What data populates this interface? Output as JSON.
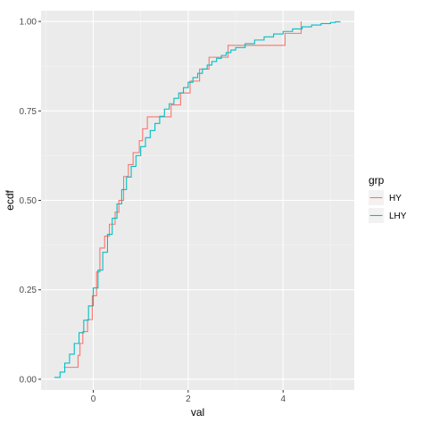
{
  "chart_data": {
    "type": "line",
    "subtype": "ecdf-step",
    "xlabel": "val",
    "ylabel": "ecdf",
    "xlim": [
      -1.1,
      5.5
    ],
    "ylim": [
      -0.03,
      1.03
    ],
    "x_ticks": [
      0,
      2,
      4
    ],
    "x_tick_labels": [
      "0",
      "2",
      "4"
    ],
    "y_ticks": [
      0.0,
      0.25,
      0.5,
      0.75,
      1.0
    ],
    "y_tick_labels": [
      "0.00",
      "0.25",
      "0.50",
      "0.75",
      "1.00"
    ],
    "grid": true,
    "legend": {
      "title": "grp",
      "position": "right"
    },
    "series": [
      {
        "name": "HY",
        "color": "#F8766D",
        "x": [
          -0.62,
          -0.32,
          -0.28,
          -0.22,
          -0.12,
          -0.02,
          0.07,
          0.14,
          0.24,
          0.34,
          0.46,
          0.54,
          0.64,
          0.74,
          0.84,
          0.97,
          1.04,
          1.14,
          1.24,
          1.34,
          1.44,
          1.64,
          1.84,
          2.04,
          2.24,
          2.44,
          2.64,
          2.84,
          3.04,
          3.24,
          3.44,
          3.64,
          3.84,
          4.04,
          4.24,
          4.38
        ],
        "y": [
          0.0333,
          0.0667,
          0.1,
          0.1333,
          0.1667,
          0.2333,
          0.3,
          0.3667,
          0.4,
          0.4333,
          0.4667,
          0.5,
          0.5667,
          0.6,
          0.6333,
          0.6667,
          0.7,
          0.7333,
          0.7333,
          0.7333,
          0.7333,
          0.7667,
          0.8,
          0.8333,
          0.8667,
          0.9,
          0.9,
          0.9333,
          0.9333,
          0.9333,
          0.9333,
          0.9333,
          0.9333,
          0.9667,
          0.9667,
          1.0
        ]
      },
      {
        "name": "LHY",
        "color": "#00BFC4",
        "x": [
          -0.82,
          -0.7,
          -0.6,
          -0.5,
          -0.4,
          -0.3,
          -0.2,
          -0.1,
          0.0,
          0.1,
          0.2,
          0.3,
          0.4,
          0.5,
          0.6,
          0.7,
          0.8,
          0.9,
          1.0,
          1.1,
          1.2,
          1.3,
          1.4,
          1.5,
          1.6,
          1.7,
          1.8,
          1.9,
          2.0,
          2.1,
          2.2,
          2.3,
          2.4,
          2.5,
          2.6,
          2.7,
          2.8,
          2.9,
          3.0,
          3.2,
          3.4,
          3.6,
          3.8,
          4.0,
          4.2,
          4.4,
          4.6,
          4.8,
          5.0,
          5.1,
          5.2
        ],
        "y": [
          0.005,
          0.02,
          0.045,
          0.07,
          0.1,
          0.13,
          0.165,
          0.205,
          0.255,
          0.305,
          0.355,
          0.405,
          0.45,
          0.49,
          0.53,
          0.565,
          0.595,
          0.625,
          0.65,
          0.675,
          0.695,
          0.715,
          0.735,
          0.755,
          0.77,
          0.785,
          0.8,
          0.815,
          0.83,
          0.843,
          0.855,
          0.867,
          0.878,
          0.888,
          0.897,
          0.905,
          0.913,
          0.92,
          0.927,
          0.938,
          0.948,
          0.957,
          0.965,
          0.972,
          0.979,
          0.985,
          0.99,
          0.994,
          0.997,
          0.999,
          1.0
        ]
      }
    ]
  }
}
